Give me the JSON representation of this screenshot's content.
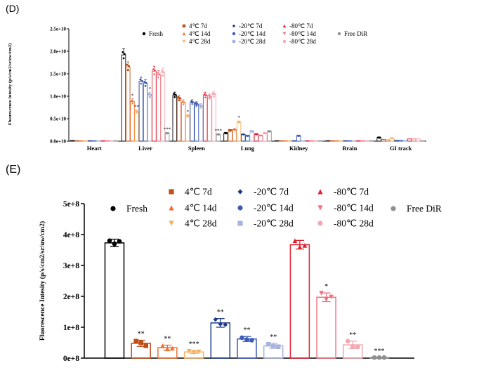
{
  "chart_data": [
    {
      "panel": "(D)",
      "type": "bar",
      "title": "",
      "xlabel": "",
      "ylabel": "Fluorescence Intesity (p/s/cm2/sr/uw/cm2)",
      "ylim": [
        0,
        25000000000
      ],
      "yticks": [
        "0.0e+10",
        "0.5e+10",
        "1.0e+10",
        "1.5e+10",
        "2.0e+10",
        "2.5e+10"
      ],
      "categories": [
        "Heart",
        "Liver",
        "Spleen",
        "Lung",
        "Kidney",
        "Brain",
        "GI track"
      ],
      "series": [
        {
          "name": "Fresh",
          "color": "#000000",
          "values": [
            150000000.0,
            19200000000.0,
            10200000000.0,
            1800000000.0,
            100000000.0,
            100000000.0,
            800000000.0
          ]
        },
        {
          "name": "4℃ 7d",
          "color": "#c0501a",
          "values": [
            100000000.0,
            16500000000.0,
            9500000000.0,
            2400000000.0,
            100000000.0,
            100000000.0,
            400000000.0
          ]
        },
        {
          "name": "4℃ 14d",
          "color": "#f07030",
          "values": [
            100000000.0,
            8800000000.0,
            8600000000.0,
            2600000000.0,
            100000000.0,
            100000000.0,
            300000000.0
          ]
        },
        {
          "name": "4℃ 28d",
          "color": "#f5b060",
          "values": [
            100000000.0,
            6500000000.0,
            5500000000.0,
            4200000000.0,
            100000000.0,
            100000000.0,
            600000000.0
          ]
        },
        {
          "name": "-20℃ 7d",
          "color": "#1f3b8a",
          "values": [
            100000000.0,
            13300000000.0,
            8600000000.0,
            1500000000.0,
            100000000.0,
            100000000.0,
            200000000.0
          ]
        },
        {
          "name": "-20℃ 14d",
          "color": "#3d5cb8",
          "values": [
            100000000.0,
            12800000000.0,
            8200000000.0,
            1200000000.0,
            1200000000.0,
            100000000.0,
            200000000.0
          ]
        },
        {
          "name": "-20℃ 28d",
          "color": "#a9b4dc",
          "values": [
            100000000.0,
            10200000000.0,
            7800000000.0,
            2200000000.0,
            100000000.0,
            100000000.0,
            200000000.0
          ]
        },
        {
          "name": "-80℃ 7d",
          "color": "#e02030",
          "values": [
            100000000.0,
            15600000000.0,
            10200000000.0,
            1600000000.0,
            100000000.0,
            100000000.0,
            500000000.0
          ]
        },
        {
          "name": "-80℃ 14d",
          "color": "#f07080",
          "values": [
            100000000.0,
            14700000000.0,
            9800000000.0,
            1200000000.0,
            100000000.0,
            100000000.0,
            500000000.0
          ]
        },
        {
          "name": "-80℃ 28d",
          "color": "#f2a8b0",
          "values": [
            100000000.0,
            15200000000.0,
            10400000000.0,
            1800000000.0,
            100000000.0,
            100000000.0,
            500000000.0
          ]
        },
        {
          "name": "Free DiR",
          "color": "#909090",
          "values": [
            100000000.0,
            1800000000.0,
            1500000000.0,
            2200000000.0,
            100000000.0,
            100000000.0,
            100000000.0
          ]
        }
      ],
      "annotations": [
        {
          "category": "Liver",
          "series": "4℃ 14d",
          "text": "*"
        },
        {
          "category": "Liver",
          "series": "4℃ 28d",
          "text": "**"
        },
        {
          "category": "Liver",
          "series": "-20℃ 28d",
          "text": "*"
        },
        {
          "category": "Liver",
          "series": "Free DiR",
          "text": "***"
        },
        {
          "category": "Spleen",
          "series": "4℃ 28d",
          "text": "*"
        },
        {
          "category": "Spleen",
          "series": "Free DiR",
          "text": "***"
        },
        {
          "category": "Lung",
          "series": "4℃ 28d",
          "text": "*"
        }
      ]
    },
    {
      "panel": "(E)",
      "type": "bar",
      "title": "",
      "xlabel": "",
      "ylabel": "Fluorescence Intesity (p/s/cm2/sr/uw/cm2)",
      "ylim": [
        0,
        500000000
      ],
      "yticks": [
        "0e+8",
        "1e+8",
        "2e+8",
        "3e+8",
        "4e+8",
        "5e+8"
      ],
      "series": [
        {
          "name": "Fresh",
          "color": "#000000",
          "value": 373000000.0,
          "error": 12000000.0,
          "points": [
            380000000.0,
            370000000.0,
            378000000.0
          ],
          "annotation": ""
        },
        {
          "name": "4℃ 7d",
          "color": "#c0501a",
          "value": 48000000.0,
          "error": 10000000.0,
          "points": [
            55000000.0,
            50000000.0,
            40000000.0
          ],
          "annotation": "**"
        },
        {
          "name": "4℃ 14d",
          "color": "#f07030",
          "value": 34000000.0,
          "error": 8000000.0,
          "points": [
            40000000.0,
            30000000.0,
            32000000.0
          ],
          "annotation": "**"
        },
        {
          "name": "4℃ 28d",
          "color": "#f5b060",
          "value": 20000000.0,
          "error": 5000000.0,
          "points": [
            22000000.0,
            18000000.0,
            20000000.0
          ],
          "annotation": "***"
        },
        {
          "name": "-20℃ 7d",
          "color": "#1f3b8a",
          "value": 114000000.0,
          "error": 14000000.0,
          "points": [
            125000000.0,
            110000000.0,
            108000000.0
          ],
          "annotation": "**"
        },
        {
          "name": "-20℃ 14d",
          "color": "#3d5cb8",
          "value": 62000000.0,
          "error": 8000000.0,
          "points": [
            66000000.0,
            60000000.0,
            58000000.0
          ],
          "annotation": "**"
        },
        {
          "name": "-20℃ 28d",
          "color": "#a9b4dc",
          "value": 40000000.0,
          "error": 8000000.0,
          "points": [
            45000000.0,
            38000000.0,
            37000000.0
          ],
          "annotation": "**"
        },
        {
          "name": "-80℃ 7d",
          "color": "#e02030",
          "value": 367000000.0,
          "error": 14000000.0,
          "points": [
            380000000.0,
            360000000.0,
            365000000.0
          ],
          "annotation": ""
        },
        {
          "name": "-80℃ 14d",
          "color": "#f07080",
          "value": 197000000.0,
          "error": 14000000.0,
          "points": [
            210000000.0,
            190000000.0,
            198000000.0
          ],
          "annotation": "*"
        },
        {
          "name": "-80℃ 28d",
          "color": "#f2a8b0",
          "value": 43000000.0,
          "error": 12000000.0,
          "points": [
            55000000.0,
            38000000.0,
            36000000.0
          ],
          "annotation": "**"
        },
        {
          "name": "Free DiR",
          "color": "#909090",
          "value": 2000000.0,
          "error": 0.0,
          "points": [
            2000000.0,
            2000000.0,
            2000000.0
          ],
          "annotation": "***"
        }
      ]
    }
  ]
}
